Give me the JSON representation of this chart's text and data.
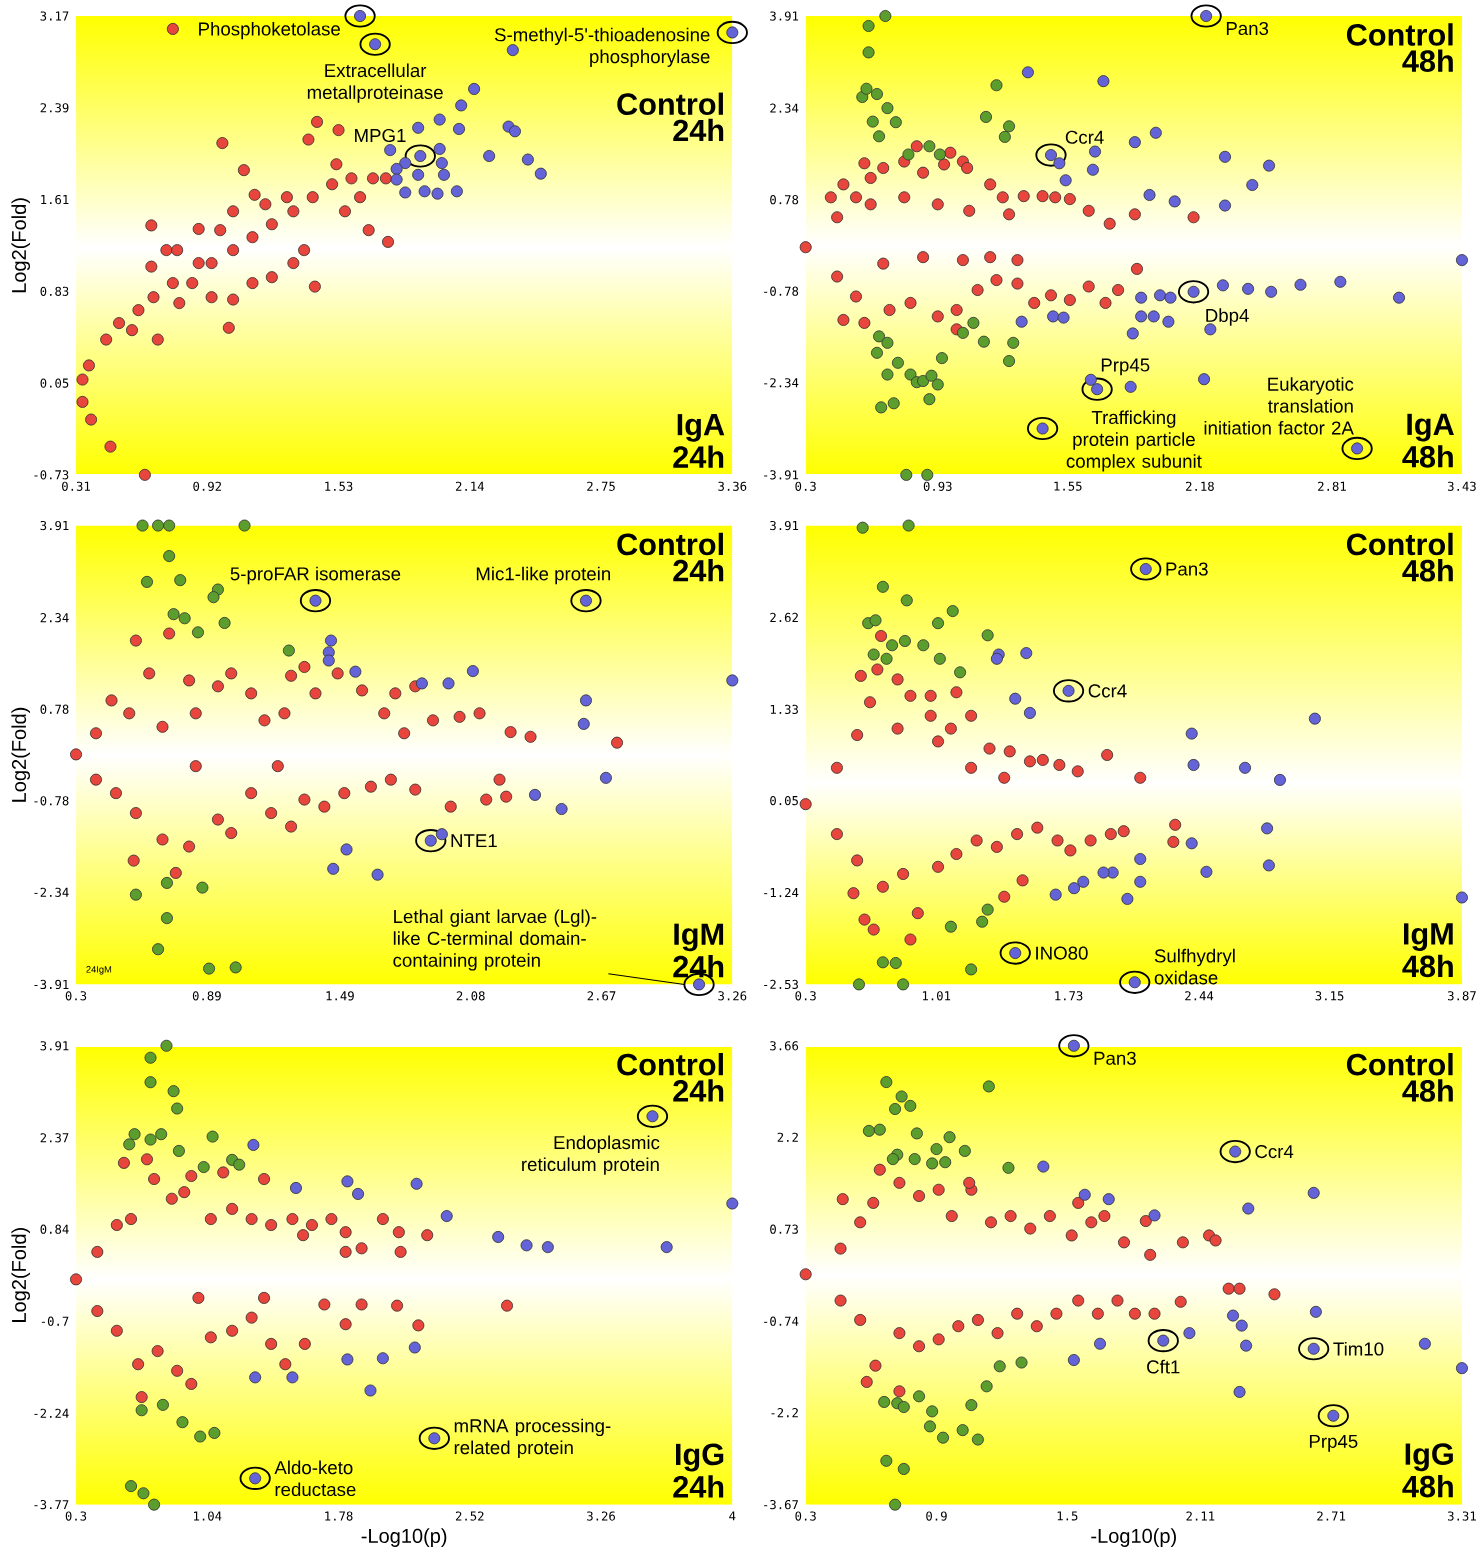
{
  "chart_data": [
    {
      "type": "scatter",
      "ylabel": "Log2(Fold)",
      "xlim": [
        0.31,
        3.36
      ],
      "ylim": [
        -0.73,
        3.17
      ],
      "xticks": [
        0.31,
        0.92,
        1.53,
        2.14,
        2.75,
        3.36
      ],
      "yticks": [
        -0.73,
        0.05,
        0.83,
        1.61,
        2.39,
        3.17
      ],
      "marker": "circle",
      "bands": [
        {
          "axis": "y",
          "from": 1.2,
          "to": 3.17,
          "color": "#ffff00"
        },
        {
          "axis": "y",
          "from": 1.2,
          "to": -0.73,
          "color": "#ffff00"
        }
      ],
      "series": [
        {
          "color": "#e8453c",
          "x": [
            0.76,
            0.34,
            0.38,
            0.47,
            0.63,
            0.34,
            0.37,
            0.45,
            0.51,
            0.6,
            0.69,
            0.66,
            0.73,
            0.66,
            0.88,
            0.78,
            1.02,
            0.99,
            1.09,
            1.14,
            0.85,
            0.94,
            1.04,
            1.13,
            1.22,
            1.32,
            1.41,
            1.5,
            1.59,
            1.69,
            1.75,
            1.39,
            1.43,
            1.53,
            1.52,
            1.67,
            1.76,
            1.42,
            1.32,
            1.22,
            1.13,
            1.04,
            0.94,
            0.79,
            0.76,
            0.67,
            0.57,
            0.88,
            0.98,
            1.19,
            1.29,
            1.04,
            1.37,
            1.56,
            1.63
          ],
          "values": [
            3.06,
            -0.11,
            -0.26,
            -0.49,
            -0.73,
            0.08,
            0.2,
            0.42,
            0.56,
            0.67,
            0.42,
            1.04,
            1.18,
            1.39,
            1.36,
            1.18,
            0.52,
            2.09,
            1.86,
            1.65,
            0.9,
            1.07,
            1.18,
            1.29,
            1.4,
            1.51,
            1.63,
            1.74,
            1.79,
            1.79,
            1.79,
            2.12,
            2.27,
            2.2,
            1.91,
            1.35,
            1.25,
            0.87,
            1.07,
            0.95,
            0.9,
            0.76,
            0.78,
            0.73,
            0.9,
            0.78,
            0.5,
            1.07,
            1.35,
            1.57,
            1.63,
            1.51,
            1.18,
            1.51,
            1.63
          ]
        },
        {
          "color": "#6464d8",
          "x": [
            1.63,
            1.7,
            3.36,
            2.34,
            2.16,
            2.1,
            2.0,
            1.9,
            2.09,
            2.32,
            2.35,
            1.77,
            1.84,
            1.91,
            2.0,
            2.01,
            2.23,
            2.41,
            2.47,
            1.8,
            1.9,
            2.02,
            1.8,
            1.84,
            1.93,
            1.99,
            2.08
          ],
          "values": [
            3.17,
            2.93,
            3.03,
            2.88,
            2.55,
            2.41,
            2.29,
            2.22,
            2.21,
            2.23,
            2.19,
            2.03,
            1.92,
            1.98,
            2.04,
            1.92,
            1.98,
            1.95,
            1.83,
            1.87,
            1.82,
            1.82,
            1.78,
            1.67,
            1.68,
            1.66,
            1.68
          ]
        }
      ],
      "annotations": [
        "Control",
        "24h",
        "IgA",
        "24h",
        {
          "text": "Phosphoketolase",
          "x": 1.63,
          "y": 3.17
        },
        {
          "text": "Extracellular metallproteinase",
          "x": 1.7,
          "y": 2.93
        },
        {
          "text": "S-methyl-5'-thioadenosine phosphorylase",
          "x": 3.36,
          "y": 3.03
        },
        {
          "text": "MPG1",
          "x": 1.91,
          "y": 1.98
        }
      ]
    },
    {
      "type": "scatter",
      "xlim": [
        0.3,
        3.43
      ],
      "ylim": [
        -3.91,
        3.91
      ],
      "xticks": [
        0.3,
        0.93,
        1.55,
        2.18,
        2.81,
        3.43
      ],
      "yticks": [
        -3.91,
        -2.34,
        -0.78,
        0.78,
        2.34,
        3.91
      ],
      "marker": "circle",
      "bands": [
        {
          "axis": "y",
          "from": 0,
          "to": 3.91,
          "color": "#ffff00"
        },
        {
          "axis": "y",
          "from": 0,
          "to": -3.91,
          "color": "#ffff00"
        }
      ],
      "series": [
        {
          "color": "#e8453c",
          "x": [
            0.3,
            0.45,
            0.54,
            0.61,
            0.67,
            0.77,
            0.86,
            0.96,
            1.05,
            1.18,
            1.24,
            1.34,
            1.43,
            1.49,
            1.56,
            1.65,
            1.75,
            1.87,
            2.15,
            1.27,
            1.08,
            0.93,
            0.77,
            0.61,
            0.42,
            0.48,
            0.58,
            0.83,
            0.99,
            1.07,
            0.45,
            0.54,
            0.48,
            0.58,
            0.7,
            0.8,
            0.93,
            1.02,
            1.12,
            1.21,
            1.31,
            1.39,
            1.47,
            1.56,
            1.65,
            1.73,
            1.79,
            1.88,
            1.31,
            1.18,
            1.05,
            0.86,
            0.67,
            1.02
          ],
          "values": [
            -0.03,
            0.48,
            0.82,
            1.15,
            1.32,
            1.43,
            1.24,
            1.38,
            1.43,
            1.04,
            0.82,
            0.84,
            0.84,
            0.82,
            0.79,
            0.59,
            0.37,
            0.53,
            0.48,
            0.53,
            0.59,
            0.7,
            0.82,
            0.7,
            0.82,
            1.04,
            1.4,
            1.69,
            1.58,
            1.32,
            -0.53,
            -0.87,
            -1.27,
            -1.32,
            -1.1,
            -0.98,
            -1.21,
            -1.1,
            -0.76,
            -0.59,
            -0.65,
            -0.98,
            -0.85,
            -0.93,
            -0.7,
            -0.98,
            -0.76,
            -0.4,
            -0.25,
            -0.2,
            -0.25,
            -0.2,
            -0.31,
            -1.43
          ]
        },
        {
          "color": "#5c9e2e",
          "x": [
            0.68,
            0.6,
            0.6,
            0.57,
            0.59,
            0.64,
            0.62,
            0.65,
            0.73,
            0.69,
            0.79,
            0.89,
            0.94,
            1.16,
            1.21,
            1.27,
            1.25,
            0.64,
            0.65,
            0.69,
            0.74,
            0.69,
            0.8,
            0.83,
            0.86,
            0.93,
            0.9,
            0.95,
            0.89,
            0.72,
            0.66,
            0.78,
            0.88,
            1.05,
            1.15,
            1.27,
            1.29,
            1.1
          ],
          "values": [
            3.91,
            3.74,
            3.29,
            2.53,
            2.67,
            2.58,
            2.11,
            1.86,
            2.1,
            2.34,
            1.55,
            1.69,
            1.55,
            2.19,
            2.73,
            2.03,
            1.85,
            -1.83,
            -1.55,
            -1.66,
            -2.0,
            -2.2,
            -2.2,
            -2.33,
            -2.31,
            -2.37,
            -2.22,
            -1.92,
            -2.62,
            -2.69,
            -2.76,
            -3.91,
            -3.91,
            -1.49,
            -1.64,
            -1.97,
            -1.66,
            -1.32
          ]
        },
        {
          "color": "#6464d8",
          "x": [
            2.21,
            1.36,
            1.72,
            1.47,
            1.51,
            1.68,
            1.67,
            1.54,
            1.87,
            1.97,
            1.94,
            2.06,
            2.3,
            2.3,
            2.43,
            2.51,
            3.43,
            2.15,
            2.29,
            2.41,
            2.52,
            2.66,
            2.85,
            3.13,
            1.99,
            2.04,
            1.9,
            1.9,
            1.96,
            2.03,
            2.23,
            1.86,
            1.48,
            1.53,
            1.33,
            2.2,
            1.66,
            1.69,
            1.85,
            1.43,
            2.93
          ],
          "values": [
            3.91,
            2.95,
            2.8,
            1.54,
            1.4,
            1.6,
            1.29,
            1.11,
            1.76,
            1.92,
            0.86,
            0.75,
            1.51,
            0.68,
            1.03,
            1.36,
            -0.25,
            -0.79,
            -0.68,
            -0.74,
            -0.79,
            -0.67,
            -0.62,
            -0.89,
            -0.85,
            -0.89,
            -0.89,
            -1.21,
            -1.21,
            -1.3,
            -1.43,
            -1.5,
            -1.21,
            -1.23,
            -1.3,
            -2.28,
            -2.29,
            -2.45,
            -2.41,
            -3.12,
            -3.46
          ]
        }
      ],
      "annotations": [
        "Control",
        "48h",
        "IgA",
        "48h",
        {
          "text": "Pan3",
          "x": 2.21,
          "y": 3.91
        },
        {
          "text": "Ccr4",
          "x": 1.47,
          "y": 1.54
        },
        {
          "text": "Dbp4",
          "x": 2.15,
          "y": -0.79
        },
        {
          "text": "Prp45",
          "x": 1.69,
          "y": -2.45
        },
        {
          "text": "Trafficking protein particle complex subunit",
          "x": 1.43,
          "y": -3.12
        },
        {
          "text": "Eukaryotic translation initiation factor 2A",
          "x": 2.93,
          "y": -3.46
        }
      ]
    },
    {
      "type": "scatter",
      "ylabel": "Log2(Fold)",
      "xlim": [
        0.3,
        3.26
      ],
      "ylim": [
        -3.91,
        3.91
      ],
      "xticks": [
        0.3,
        0.89,
        1.49,
        2.08,
        2.67,
        3.26
      ],
      "yticks": [
        -3.91,
        -2.34,
        -0.78,
        0.78,
        2.34,
        3.91
      ],
      "marker": "circle",
      "bands": [
        {
          "axis": "y",
          "from": 0,
          "to": 3.91,
          "color": "#ffff00"
        },
        {
          "axis": "y",
          "from": 0,
          "to": -3.91,
          "color": "#ffff00"
        }
      ],
      "series": [
        {
          "color": "#e8453c",
          "x": [
            0.3,
            0.39,
            0.46,
            0.57,
            0.63,
            0.72,
            0.81,
            0.84,
            0.94,
            1.0,
            1.09,
            1.15,
            1.24,
            1.27,
            1.33,
            1.38,
            1.48,
            1.59,
            1.69,
            1.78,
            1.91,
            2.03,
            2.12,
            2.26,
            2.35,
            2.74,
            1.74,
            1.83,
            0.54,
            0.69,
            0.39,
            0.48,
            0.57,
            0.56,
            0.69,
            0.75,
            0.81,
            0.94,
            1.0,
            1.09,
            1.18,
            1.27,
            1.33,
            1.42,
            1.51,
            1.63,
            1.72,
            1.83,
            1.99,
            2.15,
            2.21,
            2.24,
            1.21,
            0.84
          ],
          "values": [
            0.01,
            0.37,
            0.93,
            1.95,
            1.39,
            2.07,
            1.27,
            0.71,
            1.17,
            1.39,
            1.05,
            0.59,
            0.71,
            1.35,
            1.5,
            1.05,
            1.39,
            1.1,
            0.71,
            0.37,
            0.59,
            0.65,
            0.71,
            0.39,
            0.31,
            0.21,
            1.05,
            1.17,
            0.71,
            0.48,
            -0.42,
            -0.65,
            -0.99,
            -1.8,
            -1.44,
            -2.01,
            -1.56,
            -1.1,
            -1.33,
            -0.65,
            -0.99,
            -1.22,
            -0.76,
            -0.88,
            -0.65,
            -0.54,
            -0.42,
            -0.59,
            -0.88,
            -0.76,
            -0.42,
            -0.71,
            -0.19,
            -0.19
          ]
        },
        {
          "color": "#5c9e2e",
          "x": [
            0.6,
            0.67,
            0.72,
            1.06,
            0.72,
            0.62,
            0.77,
            0.94,
            0.92,
            0.74,
            0.79,
            0.85,
            0.97,
            1.26,
            0.57,
            0.71,
            0.87,
            0.71,
            0.67,
            0.9,
            1.02
          ],
          "values": [
            3.91,
            3.91,
            3.91,
            3.91,
            3.39,
            2.95,
            2.98,
            2.82,
            2.69,
            2.4,
            2.33,
            2.09,
            2.25,
            1.78,
            -2.38,
            -2.18,
            -2.26,
            -2.78,
            -3.31,
            -3.64,
            -3.62
          ]
        },
        {
          "color": "#6464d8",
          "x": [
            1.38,
            2.6,
            3.26,
            2.6,
            2.59,
            2.69,
            2.49,
            2.37,
            2.09,
            1.98,
            1.86,
            1.56,
            1.45,
            1.44,
            1.44,
            1.9,
            1.95,
            1.52,
            1.46,
            1.66,
            3.11
          ],
          "values": [
            2.63,
            2.63,
            1.27,
            0.93,
            0.53,
            -0.39,
            -0.92,
            -0.68,
            1.43,
            1.22,
            1.22,
            1.42,
            1.95,
            1.75,
            1.61,
            -1.46,
            -1.35,
            -1.61,
            -1.94,
            -2.04,
            -3.91
          ]
        }
      ],
      "annotations": [
        "Control",
        "24h",
        "IgM",
        "24h",
        "24IgM",
        {
          "text": "5-proFAR isomerase",
          "x": 1.38,
          "y": 2.63
        },
        {
          "text": "Mic1-like protein",
          "x": 2.6,
          "y": 2.63
        },
        {
          "text": "NTE1",
          "x": 1.9,
          "y": -1.46
        },
        {
          "text": "Lethal giant larvae (Lgl)-like C-terminal domain-containing protein",
          "x": 3.11,
          "y": -3.91
        }
      ]
    },
    {
      "type": "scatter",
      "xlim": [
        0.3,
        3.87
      ],
      "ylim": [
        -2.53,
        3.91
      ],
      "xticks": [
        0.3,
        1.01,
        1.73,
        2.44,
        3.15,
        3.87
      ],
      "yticks": [
        -2.53,
        -1.24,
        0.05,
        1.33,
        2.62,
        3.91
      ],
      "marker": "circle",
      "bands": [
        {
          "axis": "y",
          "from": 0.3,
          "to": 3.91,
          "color": "#ffff00"
        },
        {
          "axis": "y",
          "from": 0.3,
          "to": -2.53,
          "color": "#ffff00"
        }
      ],
      "series": [
        {
          "color": "#e8453c",
          "x": [
            0.3,
            0.47,
            0.58,
            0.65,
            0.6,
            0.69,
            0.8,
            0.87,
            0.98,
            1.09,
            1.2,
            1.3,
            1.41,
            1.52,
            1.59,
            1.68,
            1.78,
            1.94,
            2.12,
            0.8,
            1.02,
            1.2,
            1.38,
            0.71,
            0.98,
            1.12,
            0.47,
            0.58,
            0.56,
            0.62,
            0.72,
            0.83,
            0.91,
            1.02,
            1.12,
            1.23,
            1.34,
            1.45,
            1.56,
            1.67,
            1.74,
            1.85,
            1.96,
            2.03,
            2.31,
            2.3,
            1.48,
            1.38,
            0.87,
            0.67
          ],
          "values": [
            0.0,
            0.51,
            0.97,
            1.43,
            1.8,
            1.89,
            1.75,
            1.52,
            1.24,
            1.06,
            1.24,
            0.78,
            0.74,
            0.6,
            0.62,
            0.55,
            0.46,
            0.69,
            0.37,
            1.06,
            0.88,
            0.51,
            0.37,
            2.36,
            1.52,
            1.57,
            -0.42,
            -0.79,
            -1.25,
            -1.62,
            -1.16,
            -0.98,
            -1.53,
            -0.88,
            -0.7,
            -0.51,
            -0.6,
            -0.42,
            -0.33,
            -0.51,
            -0.65,
            -0.51,
            -0.42,
            -0.38,
            -0.29,
            -0.53,
            -1.07,
            -1.3,
            -1.9,
            -1.76
          ]
        },
        {
          "color": "#5c9e2e",
          "x": [
            0.61,
            0.86,
            0.72,
            0.85,
            1.1,
            0.64,
            0.68,
            1.02,
            0.77,
            0.84,
            0.94,
            1.29,
            0.67,
            0.74,
            1.03,
            1.14,
            1.29,
            1.2,
            1.09,
            1.26,
            0.72,
            0.79,
            0.83,
            0.59
          ],
          "values": [
            3.88,
            3.91,
            3.05,
            2.86,
            2.71,
            2.54,
            2.58,
            2.54,
            2.23,
            2.29,
            2.23,
            2.37,
            2.1,
            2.04,
            2.04,
            1.85,
            -1.48,
            -2.32,
            -1.72,
            -1.65,
            -2.22,
            -2.23,
            -2.53,
            -2.53
          ]
        },
        {
          "color": "#6464d8",
          "x": [
            2.15,
            1.73,
            1.35,
            1.5,
            1.34,
            1.44,
            1.52,
            3.07,
            2.4,
            2.41,
            2.69,
            2.88,
            2.81,
            2.4,
            2.48,
            2.82,
            3.87,
            2.12,
            2.12,
            2.05,
            1.97,
            1.92,
            1.81,
            1.76,
            1.66,
            1.44,
            2.09
          ],
          "values": [
            3.3,
            1.59,
            2.1,
            2.12,
            2.04,
            1.48,
            1.28,
            1.2,
            0.99,
            0.55,
            0.51,
            0.34,
            -0.34,
            -0.55,
            -0.95,
            -0.86,
            -1.31,
            -0.77,
            -1.09,
            -1.33,
            -0.96,
            -0.96,
            -1.09,
            -1.18,
            -1.27,
            -2.09,
            -2.5
          ]
        }
      ],
      "annotations": [
        "Control",
        "48h",
        "IgM",
        "48h",
        {
          "text": "Pan3",
          "x": 2.15,
          "y": 3.3
        },
        {
          "text": "Ccr4",
          "x": 1.73,
          "y": 1.59
        },
        {
          "text": "INO80",
          "x": 1.44,
          "y": -2.09
        },
        {
          "text": "Sulfhydryl oxidase",
          "x": 2.09,
          "y": -2.5
        }
      ]
    },
    {
      "type": "scatter",
      "xlabel": "-Log10(p)",
      "ylabel": "Log2(Fold)",
      "xlim": [
        0.3,
        4
      ],
      "ylim": [
        -3.77,
        3.91
      ],
      "xticks": [
        0.3,
        1.04,
        1.78,
        2.52,
        3.26,
        4
      ],
      "yticks": [
        -3.77,
        -2.24,
        -0.7,
        0.84,
        2.37,
        3.91
      ],
      "marker": "circle",
      "bands": [
        {
          "axis": "y",
          "from": 0,
          "to": 3.91,
          "color": "#ffff00"
        },
        {
          "axis": "y",
          "from": 0,
          "to": -3.77,
          "color": "#ffff00"
        }
      ],
      "series": [
        {
          "color": "#e8453c",
          "x": [
            0.3,
            0.42,
            0.53,
            0.61,
            0.57,
            0.7,
            0.74,
            0.84,
            0.95,
            1.06,
            1.18,
            1.29,
            1.4,
            1.52,
            1.63,
            1.74,
            1.82,
            1.91,
            2.03,
            2.12,
            2.28,
            1.82,
            1.58,
            1.36,
            1.13,
            0.91,
            2.13,
            0.42,
            0.53,
            0.65,
            0.67,
            0.76,
            0.87,
            0.95,
            1.06,
            1.18,
            1.29,
            1.4,
            1.48,
            1.59,
            1.7,
            1.82,
            1.91,
            2.11,
            2.23,
            2.73,
            1.36,
            0.99
          ],
          "values": [
            0.0,
            0.46,
            0.91,
            1.01,
            1.95,
            2.01,
            1.68,
            1.35,
            1.73,
            1.01,
            1.18,
            1.01,
            0.91,
            1.01,
            0.91,
            1.01,
            0.79,
            0.52,
            1.01,
            0.79,
            0.74,
            0.46,
            0.74,
            1.68,
            1.79,
            1.46,
            0.46,
            -0.53,
            -0.86,
            -1.42,
            -1.97,
            -1.2,
            -1.53,
            -1.75,
            -0.97,
            -0.86,
            -0.64,
            -1.08,
            -1.42,
            -1.08,
            -0.42,
            -0.75,
            -0.42,
            -0.44,
            -0.77,
            -0.44,
            -0.31,
            -0.31
          ]
        },
        {
          "color": "#5c9e2e",
          "x": [
            0.81,
            0.72,
            0.72,
            0.85,
            0.87,
            0.63,
            0.72,
            0.78,
            0.6,
            0.88,
            1.07,
            1.18,
            1.22,
            1.02,
            0.61,
            0.68,
            0.74,
            0.79,
            0.9,
            1.0,
            1.08,
            0.67
          ],
          "values": [
            3.91,
            3.71,
            3.3,
            3.15,
            2.86,
            2.43,
            2.34,
            2.43,
            2.26,
            2.15,
            2.39,
            2.0,
            1.92,
            1.88,
            -3.46,
            -3.58,
            -3.77,
            -2.1,
            -2.39,
            -2.63,
            -2.57,
            -2.19
          ]
        },
        {
          "color": "#6464d8",
          "x": [
            3.55,
            4.0,
            3.63,
            2.96,
            2.84,
            2.68,
            2.39,
            2.22,
            1.89,
            1.83,
            1.54,
            1.3,
            2.32,
            1.31,
            1.31,
            1.52,
            1.83,
            2.03,
            1.96,
            2.21
          ],
          "values": [
            2.73,
            1.27,
            0.54,
            0.54,
            0.57,
            0.71,
            1.06,
            1.6,
            1.43,
            1.64,
            1.53,
            2.25,
            -2.66,
            -3.33,
            -1.64,
            -1.64,
            -1.34,
            -1.32,
            -1.86,
            -1.14
          ]
        }
      ],
      "annotations": [
        "Control",
        "24h",
        "IgG",
        "24h",
        {
          "text": "Endoplasmic reticulum protein",
          "x": 3.55,
          "y": 2.73
        },
        {
          "text": "mRNA processing-related protein",
          "x": 2.32,
          "y": -2.66
        },
        {
          "text": "Aldo-keto reductase",
          "x": 1.31,
          "y": -3.33
        }
      ]
    },
    {
      "type": "scatter",
      "xlabel": "-Log10(p)",
      "xlim": [
        0.3,
        3.31
      ],
      "ylim": [
        -3.67,
        3.66
      ],
      "xticks": [
        0.3,
        0.9,
        1.5,
        2.11,
        2.71,
        3.31
      ],
      "yticks": [
        -3.67,
        -2.2,
        -0.74,
        0.73,
        2.2,
        3.66
      ],
      "marker": "circle",
      "bands": [
        {
          "axis": "y",
          "from": 0,
          "to": 3.66,
          "color": "#ffff00"
        },
        {
          "axis": "y",
          "from": 0,
          "to": -3.67,
          "color": "#ffff00"
        }
      ],
      "series": [
        {
          "color": "#e8453c",
          "x": [
            0.3,
            0.46,
            0.55,
            0.61,
            0.64,
            0.73,
            0.82,
            0.91,
            0.97,
            1.06,
            1.15,
            1.24,
            1.33,
            1.42,
            1.52,
            1.61,
            1.67,
            1.76,
            1.86,
            2.03,
            2.15,
            2.18,
            1.88,
            1.55,
            1.05,
            0.47,
            0.46,
            0.55,
            0.58,
            0.62,
            0.73,
            0.82,
            0.91,
            1.0,
            1.09,
            1.18,
            1.27,
            1.36,
            1.45,
            1.55,
            1.64,
            1.73,
            1.81,
            1.9,
            2.24,
            2.29,
            2.45,
            2.02,
            0.73
          ],
          "values": [
            0.01,
            0.42,
            0.84,
            1.15,
            1.68,
            1.47,
            1.26,
            1.36,
            0.94,
            1.36,
            0.84,
            0.94,
            0.74,
            0.94,
            0.63,
            0.84,
            0.94,
            0.52,
            0.86,
            0.52,
            0.63,
            0.55,
            0.32,
            1.15,
            1.47,
            1.21,
            -0.41,
            -0.72,
            -1.71,
            -1.45,
            -0.93,
            -1.14,
            -1.03,
            -0.82,
            -0.72,
            -0.93,
            -0.62,
            -0.82,
            -0.62,
            -0.41,
            -0.62,
            -0.41,
            -0.62,
            -0.62,
            -0.22,
            -0.22,
            -0.31,
            -0.43,
            -1.86
          ]
        },
        {
          "color": "#5c9e2e",
          "x": [
            0.67,
            0.74,
            0.71,
            0.78,
            1.14,
            0.59,
            0.64,
            0.81,
            0.9,
            0.96,
            1.03,
            0.72,
            0.7,
            0.8,
            0.88,
            0.94,
            1.23,
            0.66,
            0.72,
            0.75,
            0.82,
            0.88,
            0.87,
            0.93,
            1.02,
            1.09,
            1.06,
            1.13,
            1.19,
            1.29,
            0.67,
            0.75,
            0.71
          ],
          "values": [
            3.08,
            2.85,
            2.65,
            2.7,
            3.01,
            2.3,
            2.32,
            2.26,
            2.01,
            2.2,
            1.98,
            1.92,
            1.85,
            1.85,
            1.78,
            1.8,
            1.71,
            -2.03,
            -2.05,
            -2.11,
            -1.94,
            -2.18,
            -2.42,
            -2.6,
            -2.48,
            -2.63,
            -2.08,
            -1.78,
            -1.46,
            -1.4,
            -2.97,
            -3.1,
            -3.67
          ]
        },
        {
          "color": "#6464d8",
          "x": [
            1.53,
            2.27,
            2.63,
            2.33,
            1.39,
            1.58,
            1.69,
            1.9,
            2.64,
            2.26,
            2.3,
            2.32,
            2.63,
            3.14,
            3.31,
            1.94,
            2.06,
            1.65,
            1.53,
            2.29,
            2.72
          ],
          "values": [
            3.66,
            1.97,
            1.31,
            1.06,
            1.73,
            1.28,
            1.21,
            0.95,
            -0.59,
            -0.65,
            -0.81,
            -1.13,
            -1.18,
            -1.1,
            -1.49,
            -1.05,
            -0.93,
            -1.1,
            -1.36,
            -1.87,
            -2.25
          ]
        }
      ],
      "annotations": [
        "Control",
        "48h",
        "IgG",
        "48h",
        {
          "text": "Pan3",
          "x": 1.53,
          "y": 3.66
        },
        {
          "text": "Ccr4",
          "x": 2.27,
          "y": 1.97
        },
        {
          "text": "Cft1",
          "x": 1.94,
          "y": -1.05
        },
        {
          "text": "Tim10",
          "x": 2.63,
          "y": -1.18
        },
        {
          "text": "Prp45",
          "x": 2.72,
          "y": -2.25
        }
      ]
    }
  ]
}
